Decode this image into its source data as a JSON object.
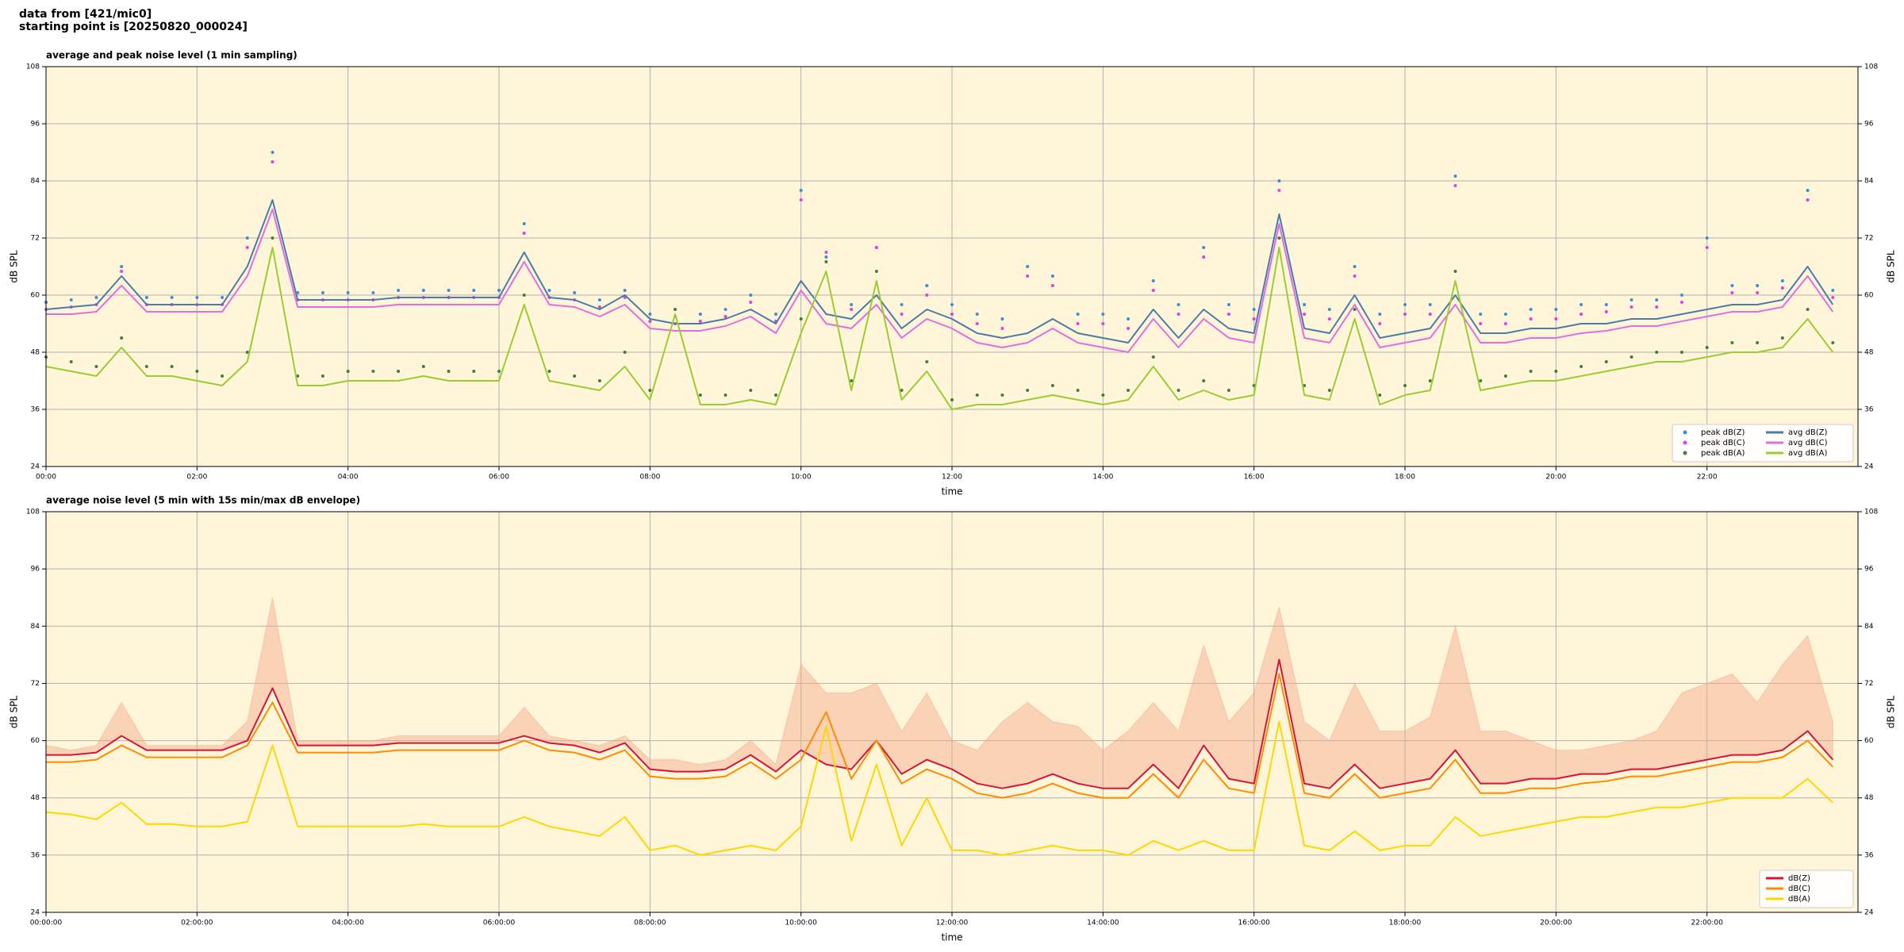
{
  "figure_title": [
    "data from [421/mic0]",
    "starting point is [20250820_000024]"
  ],
  "chart_data": [
    {
      "type": "line",
      "title": "average and peak noise level (1 min sampling)",
      "xlabel": "time",
      "ylabel": "dB SPL",
      "grid": true,
      "legend": "lower right",
      "background": "#fff6d9",
      "xlim": [
        0,
        1440
      ],
      "ylim": [
        24,
        108
      ],
      "yticks": [
        24,
        36,
        48,
        60,
        72,
        84,
        96,
        108
      ],
      "xticks": [
        {
          "value": 0,
          "label": "00:00"
        },
        {
          "value": 120,
          "label": "02:00"
        },
        {
          "value": 240,
          "label": "04:00"
        },
        {
          "value": 360,
          "label": "06:00"
        },
        {
          "value": 480,
          "label": "08:00"
        },
        {
          "value": 600,
          "label": "10:00"
        },
        {
          "value": 720,
          "label": "12:00"
        },
        {
          "value": 840,
          "label": "14:00"
        },
        {
          "value": 960,
          "label": "16:00"
        },
        {
          "value": 1080,
          "label": "18:00"
        },
        {
          "value": 1200,
          "label": "20:00"
        },
        {
          "value": 1320,
          "label": "22:00"
        }
      ],
      "x": [
        0,
        20,
        40,
        60,
        80,
        100,
        120,
        140,
        160,
        180,
        200,
        220,
        240,
        260,
        280,
        300,
        320,
        340,
        360,
        380,
        400,
        420,
        440,
        460,
        480,
        500,
        520,
        540,
        560,
        580,
        600,
        620,
        640,
        660,
        680,
        700,
        720,
        740,
        760,
        780,
        800,
        820,
        840,
        860,
        880,
        900,
        920,
        940,
        960,
        980,
        1000,
        1020,
        1040,
        1060,
        1080,
        1100,
        1120,
        1140,
        1160,
        1180,
        1200,
        1220,
        1240,
        1260,
        1280,
        1300,
        1320,
        1340,
        1360,
        1380,
        1400,
        1420
      ],
      "series": [
        {
          "name": "peak dB(Z)",
          "style": "dots",
          "color": "#3a8fd8",
          "values": [
            58.5,
            59,
            59.5,
            66,
            59.5,
            59.5,
            59.5,
            59.5,
            72,
            90,
            60.5,
            60.5,
            60.5,
            60.5,
            61,
            61,
            61,
            61,
            61,
            75,
            61,
            60.5,
            59,
            61,
            56,
            55.5,
            56,
            57,
            60,
            56,
            82,
            68,
            58,
            70,
            58,
            62,
            58,
            56,
            55,
            66,
            64,
            56,
            56,
            55,
            63,
            58,
            70,
            58,
            57,
            84,
            58,
            57,
            66,
            56,
            58,
            58,
            85,
            56,
            56,
            57,
            57,
            58,
            58,
            59,
            59,
            60,
            72,
            62,
            62,
            63,
            82,
            61
          ]
        },
        {
          "name": "peak dB(C)",
          "style": "dots",
          "color": "#e23fe2",
          "values": [
            57,
            57.5,
            58,
            65,
            58,
            58,
            58,
            58,
            70,
            88,
            59,
            59,
            59,
            59,
            59.5,
            59.5,
            59.5,
            59.5,
            59.5,
            73,
            59.5,
            59,
            57.5,
            59.5,
            54.5,
            54,
            54.5,
            55.5,
            58.5,
            54.5,
            80,
            69,
            57,
            70,
            56,
            60,
            56,
            54,
            53,
            64,
            62,
            54,
            54,
            53,
            61,
            56,
            68,
            56,
            55,
            82,
            56,
            55,
            64,
            54,
            56,
            56,
            83,
            54,
            54,
            55,
            55,
            56,
            56.5,
            57.5,
            57.5,
            58.5,
            70,
            60.5,
            60.5,
            61.5,
            80,
            59.5
          ]
        },
        {
          "name": "peak dB(A)",
          "style": "dots",
          "color": "#3f7f3a",
          "values": [
            47,
            46,
            45,
            51,
            45,
            45,
            44,
            43,
            48,
            72,
            43,
            43,
            44,
            44,
            44,
            45,
            44,
            44,
            44,
            60,
            44,
            43,
            42,
            48,
            40,
            57,
            39,
            39,
            40,
            39,
            55,
            67,
            42,
            65,
            40,
            46,
            38,
            39,
            39,
            40,
            41,
            40,
            39,
            40,
            47,
            40,
            42,
            40,
            41,
            72,
            41,
            40,
            57,
            39,
            41,
            42,
            65,
            42,
            43,
            44,
            44,
            45,
            46,
            47,
            48,
            48,
            49,
            50,
            50,
            51,
            57,
            50
          ]
        },
        {
          "name": "avg dB(Z)",
          "style": "line",
          "color": "#4a7ca8",
          "values": [
            57,
            57.5,
            58,
            64,
            58,
            58,
            58,
            58,
            66,
            80,
            59,
            59,
            59,
            59,
            59.5,
            59.5,
            59.5,
            59.5,
            59.5,
            69,
            59.5,
            59,
            57,
            60,
            55,
            54,
            54,
            55,
            57,
            54,
            63,
            56,
            55,
            60,
            53,
            57,
            55,
            52,
            51,
            52,
            55,
            52,
            51,
            50,
            57,
            51,
            57,
            53,
            52,
            77,
            53,
            52,
            60,
            51,
            52,
            53,
            60,
            52,
            52,
            53,
            53,
            54,
            54,
            55,
            55,
            56,
            57,
            58,
            58,
            59,
            66,
            58
          ]
        },
        {
          "name": "avg dB(C)",
          "style": "line",
          "color": "#e06ee0",
          "values": [
            56,
            56,
            56.5,
            62,
            56.5,
            56.5,
            56.5,
            56.5,
            64,
            78,
            57.5,
            57.5,
            57.5,
            57.5,
            58,
            58,
            58,
            58,
            58,
            67,
            58,
            57.5,
            55.5,
            58,
            53,
            52.5,
            52.5,
            53.5,
            55.5,
            52,
            61,
            54,
            53,
            58,
            51,
            55,
            53,
            50,
            49,
            50,
            53,
            50,
            49,
            48,
            55,
            49,
            55,
            51,
            50,
            75,
            51,
            50,
            58,
            49,
            50,
            51,
            58,
            50,
            50,
            51,
            51,
            52,
            52.5,
            53.5,
            53.5,
            54.5,
            55.5,
            56.5,
            56.5,
            57.5,
            64,
            56.5
          ]
        },
        {
          "name": "avg dB(A)",
          "style": "line",
          "color": "#9acd32",
          "values": [
            45,
            44,
            43,
            49,
            43,
            43,
            42,
            41,
            46,
            70,
            41,
            41,
            42,
            42,
            42,
            43,
            42,
            42,
            42,
            58,
            42,
            41,
            40,
            45,
            38,
            56,
            37,
            37,
            38,
            37,
            52,
            65,
            40,
            63,
            38,
            44,
            36,
            37,
            37,
            38,
            39,
            38,
            37,
            38,
            45,
            38,
            40,
            38,
            39,
            70,
            39,
            38,
            55,
            37,
            39,
            40,
            63,
            40,
            41,
            42,
            42,
            43,
            44,
            45,
            46,
            46,
            47,
            48,
            48,
            49,
            55,
            48
          ]
        }
      ]
    },
    {
      "type": "line",
      "title": "average noise level (5 min with 15s min/max dB envelope)",
      "xlabel": "time",
      "ylabel": "dB SPL",
      "grid": true,
      "legend": "lower right",
      "background": "#fff6d9",
      "xlim": [
        0,
        1440
      ],
      "ylim": [
        24,
        108
      ],
      "yticks": [
        24,
        36,
        48,
        60,
        72,
        84,
        96,
        108
      ],
      "xticks": [
        {
          "value": 0,
          "label": "00:00:00"
        },
        {
          "value": 120,
          "label": "02:00:00"
        },
        {
          "value": 240,
          "label": "04:00:00"
        },
        {
          "value": 360,
          "label": "06:00:00"
        },
        {
          "value": 480,
          "label": "08:00:00"
        },
        {
          "value": 600,
          "label": "10:00:00"
        },
        {
          "value": 720,
          "label": "12:00:00"
        },
        {
          "value": 840,
          "label": "14:00:00"
        },
        {
          "value": 960,
          "label": "16:00:00"
        },
        {
          "value": 1080,
          "label": "18:00:00"
        },
        {
          "value": 1200,
          "label": "20:00:00"
        },
        {
          "value": 1320,
          "label": "22:00:00"
        }
      ],
      "x": [
        0,
        20,
        40,
        60,
        80,
        100,
        120,
        140,
        160,
        180,
        200,
        220,
        240,
        260,
        280,
        300,
        320,
        340,
        360,
        380,
        400,
        420,
        440,
        460,
        480,
        500,
        520,
        540,
        560,
        580,
        600,
        620,
        640,
        660,
        680,
        700,
        720,
        740,
        760,
        780,
        800,
        820,
        840,
        860,
        880,
        900,
        920,
        940,
        960,
        980,
        1000,
        1020,
        1040,
        1060,
        1080,
        1100,
        1120,
        1140,
        1160,
        1180,
        1200,
        1220,
        1240,
        1260,
        1280,
        1300,
        1320,
        1340,
        1360,
        1380,
        1400,
        1420
      ],
      "envelope": {
        "color": "#f5a78c",
        "max": [
          59,
          58,
          59,
          68,
          59,
          59,
          59,
          59,
          64,
          90,
          60,
          60,
          60,
          60,
          61,
          61,
          61,
          61,
          61,
          67,
          61,
          60,
          59,
          61,
          56,
          56,
          55,
          56,
          60,
          55,
          76,
          70,
          70,
          72,
          62,
          70,
          60,
          58,
          64,
          68,
          64,
          63,
          58,
          62,
          68,
          62,
          80,
          64,
          70,
          88,
          64,
          60,
          72,
          62,
          62,
          65,
          84,
          62,
          62,
          60,
          58,
          58,
          59,
          60,
          62,
          70,
          72,
          74,
          68,
          76,
          82,
          64
        ]
      },
      "series": [
        {
          "name": "dB(Z)",
          "style": "line",
          "color": "#d4143a",
          "values": [
            57,
            57,
            57.5,
            61,
            58,
            58,
            58,
            58,
            60,
            71,
            59,
            59,
            59,
            59,
            59.5,
            59.5,
            59.5,
            59.5,
            59.5,
            61,
            59.5,
            59,
            57.5,
            59.5,
            54,
            53.5,
            53.5,
            54,
            57,
            53.5,
            58,
            55,
            54,
            60,
            53,
            56,
            54,
            51,
            50,
            51,
            53,
            51,
            50,
            50,
            55,
            50,
            59,
            52,
            51,
            77,
            51,
            50,
            55,
            50,
            51,
            52,
            58,
            51,
            51,
            52,
            52,
            53,
            53,
            54,
            54,
            55,
            56,
            57,
            57,
            58,
            62,
            56
          ]
        },
        {
          "name": "dB(C)",
          "style": "line",
          "color": "#ff8c00",
          "values": [
            55.5,
            55.5,
            56,
            59,
            56.5,
            56.5,
            56.5,
            56.5,
            59,
            68,
            57.5,
            57.5,
            57.5,
            57.5,
            58,
            58,
            58,
            58,
            58,
            60,
            58,
            57.5,
            56,
            58,
            52.5,
            52,
            52,
            52.5,
            55.5,
            52,
            56,
            66,
            52,
            60,
            51,
            54,
            52,
            49,
            48,
            49,
            51,
            49,
            48,
            48,
            53,
            48,
            56,
            50,
            49,
            74,
            49,
            48,
            53,
            48,
            49,
            50,
            56,
            49,
            49,
            50,
            50,
            51,
            51.5,
            52.5,
            52.5,
            53.5,
            54.5,
            55.5,
            55.5,
            56.5,
            60,
            54.5
          ]
        },
        {
          "name": "dB(A)",
          "style": "line",
          "color": "#ffd700",
          "values": [
            45,
            44.5,
            43.5,
            47,
            42.5,
            42.5,
            42,
            42,
            43,
            59,
            42,
            42,
            42,
            42,
            42,
            42.5,
            42,
            42,
            42,
            44,
            42,
            41,
            40,
            44,
            37,
            38,
            36,
            37,
            38,
            37,
            42,
            63,
            39,
            55,
            38,
            48,
            37,
            37,
            36,
            37,
            38,
            37,
            37,
            36,
            39,
            37,
            39,
            37,
            37,
            64,
            38,
            37,
            41,
            37,
            38,
            38,
            44,
            40,
            41,
            42,
            43,
            44,
            44,
            45,
            46,
            46,
            47,
            48,
            48,
            48,
            52,
            47
          ]
        }
      ]
    }
  ]
}
